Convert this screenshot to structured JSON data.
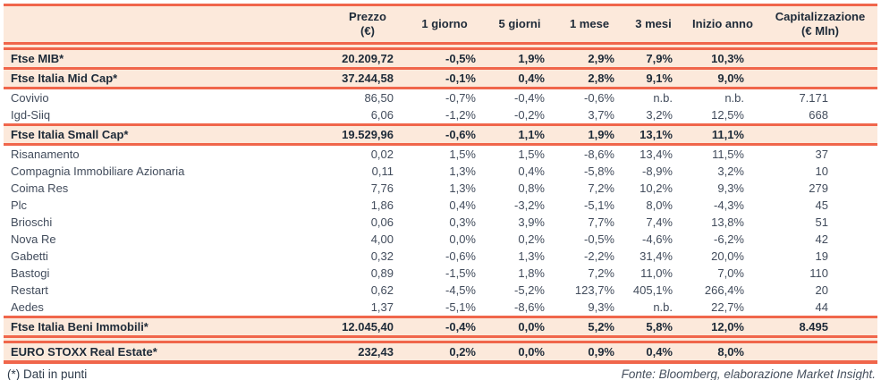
{
  "table": {
    "columns": [
      {
        "label": ""
      },
      {
        "label": "Prezzo\n(€)"
      },
      {
        "label": "1 giorno"
      },
      {
        "label": "5 giorni"
      },
      {
        "label": "1 mese"
      },
      {
        "label": "3 mesi"
      },
      {
        "label": "Inizio anno"
      },
      {
        "label": "Capitalizzazione\n(€ Mln)"
      }
    ],
    "rows": [
      {
        "name": "Ftse MIB*",
        "index": true,
        "values": [
          "20.209,72",
          "-0,5%",
          "1,9%",
          "2,9%",
          "7,9%",
          "10,3%",
          ""
        ]
      },
      {
        "name": "Ftse Italia Mid Cap*",
        "index": true,
        "values": [
          "37.244,58",
          "-0,1%",
          "0,4%",
          "2,8%",
          "9,1%",
          "9,0%",
          ""
        ]
      },
      {
        "name": "Covivio",
        "index": false,
        "values": [
          "86,50",
          "-0,7%",
          "-0,4%",
          "-0,6%",
          "n.b.",
          "n.b.",
          "7.171"
        ]
      },
      {
        "name": "Igd-Siiq",
        "index": false,
        "values": [
          "6,06",
          "-1,2%",
          "-0,2%",
          "3,7%",
          "3,2%",
          "12,5%",
          "668"
        ]
      },
      {
        "name": "Ftse Italia Small Cap*",
        "index": true,
        "values": [
          "19.529,96",
          "-0,6%",
          "1,1%",
          "1,9%",
          "13,1%",
          "11,1%",
          ""
        ]
      },
      {
        "name": "Risanamento",
        "index": false,
        "values": [
          "0,02",
          "1,5%",
          "1,5%",
          "-8,6%",
          "13,4%",
          "11,5%",
          "37"
        ]
      },
      {
        "name": "Compagnia Immobiliare Azionaria",
        "index": false,
        "values": [
          "0,11",
          "1,3%",
          "0,4%",
          "-5,8%",
          "-8,9%",
          "3,2%",
          "10"
        ]
      },
      {
        "name": "Coima Res",
        "index": false,
        "values": [
          "7,76",
          "1,3%",
          "0,8%",
          "7,2%",
          "10,2%",
          "9,3%",
          "279"
        ]
      },
      {
        "name": "Plc",
        "index": false,
        "values": [
          "1,86",
          "0,4%",
          "-3,2%",
          "-5,1%",
          "8,0%",
          "-4,3%",
          "45"
        ]
      },
      {
        "name": "Brioschi",
        "index": false,
        "values": [
          "0,06",
          "0,3%",
          "3,9%",
          "7,7%",
          "7,4%",
          "13,8%",
          "51"
        ]
      },
      {
        "name": "Nova Re",
        "index": false,
        "values": [
          "4,00",
          "0,0%",
          "0,2%",
          "-0,5%",
          "-4,6%",
          "-6,2%",
          "42"
        ]
      },
      {
        "name": "Gabetti",
        "index": false,
        "values": [
          "0,32",
          "-0,6%",
          "1,3%",
          "-2,2%",
          "31,4%",
          "20,0%",
          "19"
        ]
      },
      {
        "name": "Bastogi",
        "index": false,
        "values": [
          "0,89",
          "-1,5%",
          "1,8%",
          "7,2%",
          "11,0%",
          "7,0%",
          "110"
        ]
      },
      {
        "name": "Restart",
        "index": false,
        "values": [
          "0,62",
          "-4,5%",
          "-5,2%",
          "123,7%",
          "405,1%",
          "266,4%",
          "20"
        ]
      },
      {
        "name": "Aedes",
        "index": false,
        "values": [
          "1,37",
          "-5,1%",
          "-8,6%",
          "9,3%",
          "n.b.",
          "22,7%",
          "44"
        ]
      },
      {
        "name": "Ftse Italia Beni Immobili*",
        "index": true,
        "values": [
          "12.045,40",
          "-0,4%",
          "0,0%",
          "5,2%",
          "5,8%",
          "12,0%",
          "8.495"
        ]
      },
      {
        "name": "EURO STOXX Real Estate*",
        "index": true,
        "values": [
          "232,43",
          "0,2%",
          "0,0%",
          "0,9%",
          "0,4%",
          "8,0%",
          ""
        ]
      }
    ]
  },
  "footer": {
    "note": "(*) Dati in punti",
    "source": "Fonte: Bloomberg, elaborazione Market Insight."
  },
  "colors": {
    "accent_line": "#f0664b",
    "row_highlight": "#fce9db",
    "text_dark": "#1d2a38",
    "text_body": "#424c5c"
  }
}
